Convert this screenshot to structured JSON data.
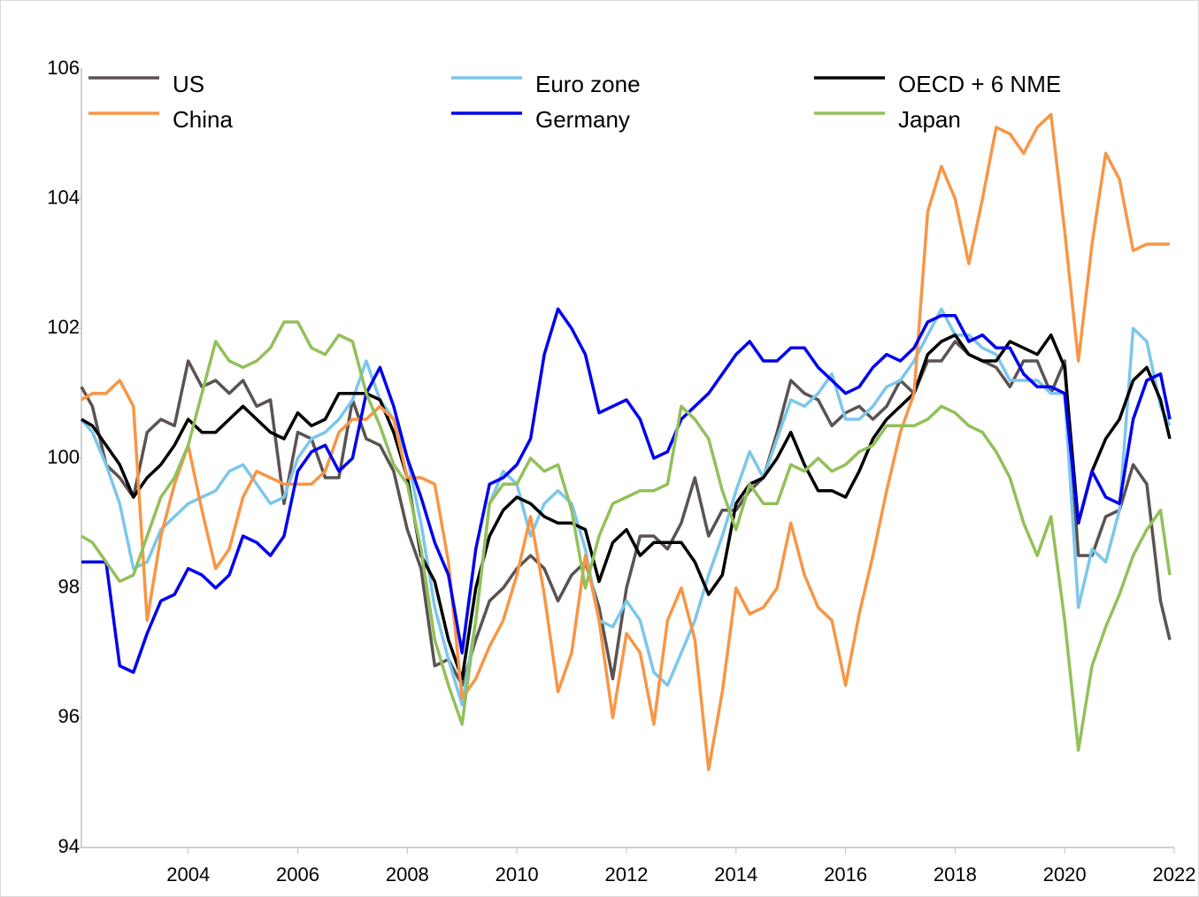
{
  "chart_data": {
    "type": "line",
    "x": [
      2002.05,
      2002.25,
      2002.5,
      2002.75,
      2003,
      2003.25,
      2003.5,
      2003.75,
      2004,
      2004.25,
      2004.5,
      2004.75,
      2005,
      2005.25,
      2005.5,
      2005.75,
      2006,
      2006.25,
      2006.5,
      2006.75,
      2007,
      2007.25,
      2007.5,
      2007.75,
      2008,
      2008.25,
      2008.5,
      2008.75,
      2009,
      2009.25,
      2009.5,
      2009.75,
      2010,
      2010.25,
      2010.5,
      2010.75,
      2011,
      2011.25,
      2011.5,
      2011.75,
      2012,
      2012.25,
      2012.5,
      2012.75,
      2013,
      2013.25,
      2013.5,
      2013.75,
      2014,
      2014.25,
      2014.5,
      2014.75,
      2015,
      2015.25,
      2015.5,
      2015.75,
      2016,
      2016.25,
      2016.5,
      2016.75,
      2017,
      2017.25,
      2017.5,
      2017.75,
      2018,
      2018.25,
      2018.5,
      2018.75,
      2019,
      2019.25,
      2019.5,
      2019.75,
      2020,
      2020.25,
      2020.5,
      2020.75,
      2021,
      2021.25,
      2021.5,
      2021.75,
      2021.92
    ],
    "series": [
      {
        "name": "US",
        "color": "#5b5351",
        "values": [
          101.1,
          100.8,
          99.9,
          99.7,
          99.4,
          100.4,
          100.6,
          100.5,
          101.5,
          101.1,
          101.2,
          101.0,
          101.2,
          100.8,
          100.9,
          99.3,
          100.4,
          100.3,
          99.7,
          99.7,
          100.9,
          100.3,
          100.2,
          99.8,
          98.9,
          98.3,
          96.8,
          96.9,
          96.5,
          97.2,
          97.8,
          98.0,
          98.3,
          98.5,
          98.3,
          97.8,
          98.2,
          98.4,
          97.7,
          96.6,
          98.0,
          98.8,
          98.8,
          98.6,
          99.0,
          99.7,
          98.8,
          99.2,
          99.2,
          99.5,
          99.7,
          100.4,
          101.2,
          101.0,
          100.9,
          100.5,
          100.7,
          100.8,
          100.6,
          100.8,
          101.2,
          101.0,
          101.5,
          101.5,
          101.8,
          101.6,
          101.5,
          101.4,
          101.1,
          101.5,
          101.5,
          101.0,
          101.5,
          98.5,
          98.5,
          99.1,
          99.2,
          99.9,
          99.6,
          97.8,
          97.2
        ]
      },
      {
        "name": "Euro zone",
        "color": "#7cc6ec",
        "values": [
          100.6,
          100.4,
          99.9,
          99.3,
          98.3,
          98.4,
          98.9,
          99.1,
          99.3,
          99.4,
          99.5,
          99.8,
          99.9,
          99.6,
          99.3,
          99.4,
          100.0,
          100.3,
          100.4,
          100.6,
          100.9,
          101.5,
          100.9,
          100.6,
          100.0,
          99.0,
          97.7,
          96.9,
          96.2,
          97.5,
          99.3,
          99.8,
          99.6,
          98.8,
          99.3,
          99.5,
          99.3,
          98.6,
          97.5,
          97.4,
          97.8,
          97.5,
          96.7,
          96.5,
          97.0,
          97.5,
          98.2,
          98.8,
          99.5,
          100.1,
          99.7,
          100.3,
          100.9,
          100.8,
          101.0,
          101.3,
          100.6,
          100.6,
          100.8,
          101.1,
          101.2,
          101.5,
          101.9,
          102.3,
          101.9,
          101.9,
          101.7,
          101.6,
          101.2,
          101.2,
          101.2,
          101.0,
          101.0,
          97.7,
          98.6,
          98.4,
          99.2,
          102.0,
          101.8,
          100.8,
          100.5
        ]
      },
      {
        "name": "OECD + 6 NME",
        "color": "#000000",
        "values": [
          100.6,
          100.5,
          100.2,
          99.9,
          99.4,
          99.7,
          99.9,
          100.2,
          100.6,
          100.4,
          100.4,
          100.6,
          100.8,
          100.6,
          100.4,
          100.3,
          100.7,
          100.5,
          100.6,
          101.0,
          101.0,
          101.0,
          100.9,
          100.4,
          99.7,
          98.5,
          98.1,
          97.2,
          96.6,
          98.0,
          98.8,
          99.2,
          99.4,
          99.3,
          99.1,
          99.0,
          99.0,
          98.9,
          98.1,
          98.7,
          98.9,
          98.5,
          98.7,
          98.7,
          98.7,
          98.4,
          97.9,
          98.2,
          99.3,
          99.6,
          99.7,
          100.0,
          100.4,
          99.9,
          99.5,
          99.5,
          99.4,
          99.8,
          100.3,
          100.6,
          100.8,
          101.0,
          101.6,
          101.8,
          101.9,
          101.6,
          101.5,
          101.5,
          101.8,
          101.7,
          101.6,
          101.9,
          101.4,
          99.0,
          99.8,
          100.3,
          100.6,
          101.2,
          101.4,
          100.9,
          100.3
        ]
      },
      {
        "name": "China",
        "color": "#f79646",
        "values": [
          100.9,
          101.0,
          101.0,
          101.2,
          100.8,
          97.5,
          98.8,
          99.6,
          100.2,
          99.2,
          98.3,
          98.6,
          99.4,
          99.8,
          99.7,
          99.6,
          99.6,
          99.6,
          99.8,
          100.4,
          100.6,
          100.6,
          100.8,
          100.6,
          99.7,
          99.7,
          99.6,
          98.4,
          96.3,
          96.6,
          97.1,
          97.5,
          98.2,
          99.1,
          97.9,
          96.4,
          97.0,
          98.5,
          97.5,
          96.0,
          97.3,
          97.0,
          95.9,
          97.5,
          98.0,
          97.2,
          95.2,
          96.4,
          98.0,
          97.6,
          97.7,
          98.0,
          99.0,
          98.2,
          97.7,
          97.5,
          96.5,
          97.6,
          98.5,
          99.5,
          100.4,
          101.0,
          103.8,
          104.5,
          104.0,
          103.0,
          104.0,
          105.1,
          105.0,
          104.7,
          105.1,
          105.3,
          103.5,
          101.5,
          103.3,
          104.7,
          104.3,
          103.2,
          103.3,
          103.3,
          103.3
        ]
      },
      {
        "name": "Germany",
        "color": "#0000ee",
        "values": [
          98.4,
          98.4,
          98.4,
          96.8,
          96.7,
          97.3,
          97.8,
          97.9,
          98.3,
          98.2,
          98.0,
          98.2,
          98.8,
          98.7,
          98.5,
          98.8,
          99.8,
          100.1,
          100.2,
          99.8,
          100.0,
          101.0,
          101.4,
          100.8,
          100.0,
          99.4,
          98.7,
          98.2,
          97.0,
          98.6,
          99.6,
          99.7,
          99.9,
          100.3,
          101.6,
          102.3,
          102.0,
          101.6,
          100.7,
          100.8,
          100.9,
          100.6,
          100.0,
          100.1,
          100.6,
          100.8,
          101.0,
          101.3,
          101.6,
          101.8,
          101.5,
          101.5,
          101.7,
          101.7,
          101.4,
          101.2,
          101.0,
          101.1,
          101.4,
          101.6,
          101.5,
          101.7,
          102.1,
          102.2,
          102.2,
          101.8,
          101.9,
          101.7,
          101.7,
          101.3,
          101.1,
          101.1,
          101.0,
          99.0,
          99.8,
          99.4,
          99.3,
          100.6,
          101.2,
          101.3,
          100.6
        ]
      },
      {
        "name": "Japan",
        "color": "#92c05a",
        "values": [
          98.8,
          98.7,
          98.4,
          98.1,
          98.2,
          98.8,
          99.4,
          99.7,
          100.2,
          101.0,
          101.8,
          101.5,
          101.4,
          101.5,
          101.7,
          102.1,
          102.1,
          101.7,
          101.6,
          101.9,
          101.8,
          101.0,
          100.5,
          99.9,
          99.6,
          98.6,
          97.2,
          96.5,
          95.9,
          97.5,
          99.3,
          99.6,
          99.6,
          100.0,
          99.8,
          99.9,
          99.2,
          98.0,
          98.8,
          99.3,
          99.4,
          99.5,
          99.5,
          99.6,
          100.8,
          100.6,
          100.3,
          99.5,
          98.9,
          99.6,
          99.3,
          99.3,
          99.9,
          99.8,
          100.0,
          99.8,
          99.9,
          100.1,
          100.2,
          100.5,
          100.5,
          100.5,
          100.6,
          100.8,
          100.7,
          100.5,
          100.4,
          100.1,
          99.7,
          99.0,
          98.5,
          99.1,
          97.5,
          95.5,
          96.8,
          97.4,
          97.9,
          98.5,
          98.9,
          99.2,
          98.2
        ]
      }
    ],
    "xlim": [
      2002.05,
      2022
    ],
    "xticks": [
      2004,
      2006,
      2008,
      2010,
      2012,
      2014,
      2016,
      2018,
      2020,
      2022
    ],
    "ylim": [
      94,
      106
    ],
    "yticks": [
      94,
      96,
      98,
      100,
      102,
      104,
      106
    ]
  }
}
